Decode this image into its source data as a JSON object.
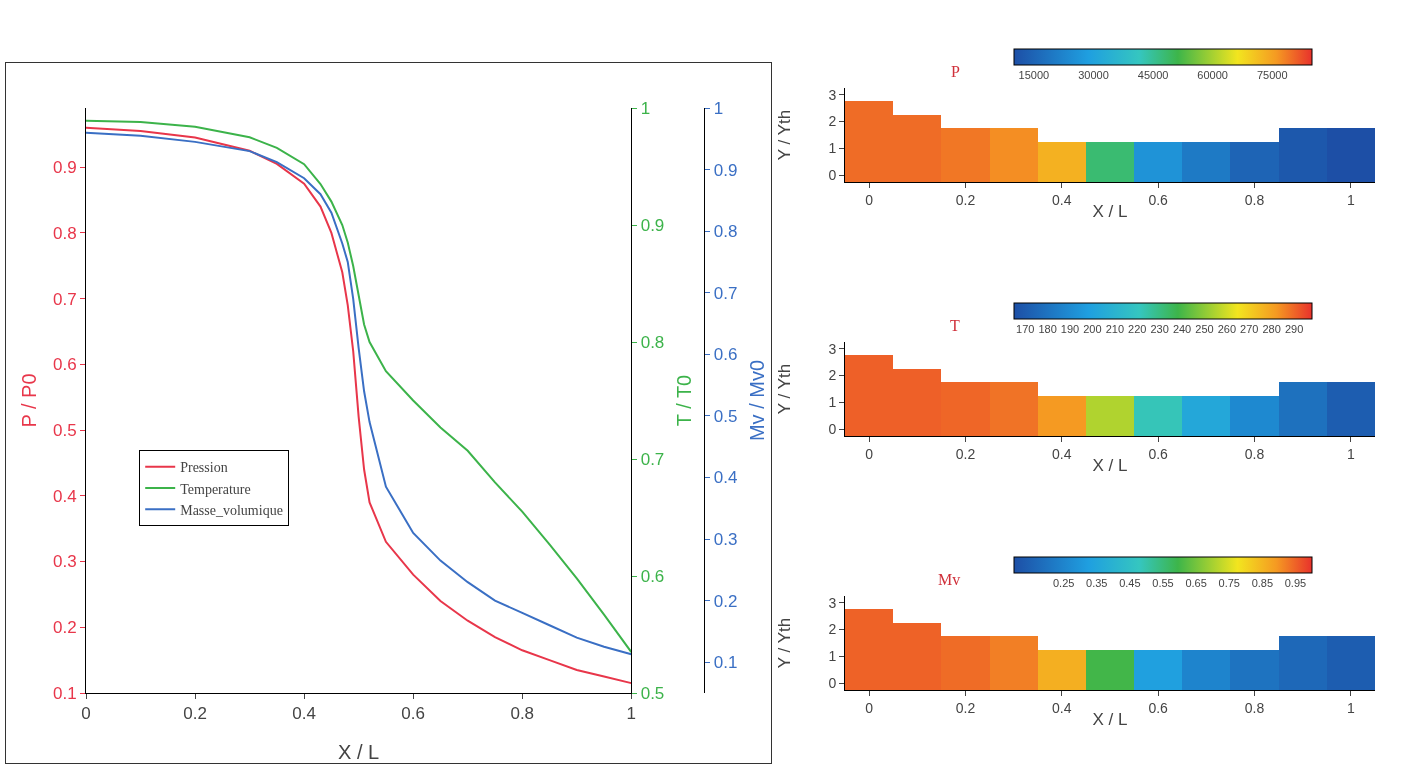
{
  "chart_data": [
    {
      "type": "line",
      "xlabel": "X / L",
      "ylabel": "P / P0",
      "y2label": "T / T0",
      "y3label": "Mv / Mv0",
      "x": [
        0,
        0.1,
        0.2,
        0.3,
        0.35,
        0.4,
        0.43,
        0.45,
        0.47,
        0.48,
        0.49,
        0.5,
        0.51,
        0.52,
        0.55,
        0.6,
        0.65,
        0.7,
        0.75,
        0.8,
        0.85,
        0.9,
        0.95,
        1
      ],
      "xlim": [
        0,
        1
      ],
      "xticks": [
        0,
        0.2,
        0.4,
        0.6,
        0.8,
        1
      ],
      "ylim": [
        0.1,
        0.99
      ],
      "yticks": [
        0.1,
        0.2,
        0.3,
        0.4,
        0.5,
        0.6,
        0.7,
        0.8,
        0.9
      ],
      "y2lim": [
        0.5,
        1
      ],
      "y2ticks": [
        0.5,
        0.6,
        0.7,
        0.8,
        0.9,
        1
      ],
      "y3lim": [
        0.05,
        1
      ],
      "y3ticks": [
        0.1,
        0.2,
        0.3,
        0.4,
        0.5,
        0.6,
        0.7,
        0.8,
        0.9,
        1
      ],
      "legend": "left",
      "grid": false,
      "series": [
        {
          "name": "Pression",
          "color": "#e8364a",
          "values": [
            0.96,
            0.955,
            0.945,
            0.925,
            0.905,
            0.875,
            0.84,
            0.8,
            0.74,
            0.69,
            0.62,
            0.52,
            0.44,
            0.39,
            0.33,
            0.28,
            0.24,
            0.21,
            0.185,
            0.165,
            0.15,
            0.135,
            0.125,
            0.115
          ]
        },
        {
          "name": "Temperature",
          "color": "#3cb34a",
          "axis": "y2",
          "values": [
            0.989,
            0.988,
            0.984,
            0.975,
            0.966,
            0.952,
            0.935,
            0.92,
            0.9,
            0.885,
            0.865,
            0.84,
            0.815,
            0.8,
            0.775,
            0.75,
            0.727,
            0.707,
            0.68,
            0.655,
            0.627,
            0.598,
            0.567,
            0.535
          ]
        },
        {
          "name": "Masse_volumique",
          "color": "#3a6fc4",
          "axis": "y3",
          "values": [
            0.96,
            0.955,
            0.945,
            0.93,
            0.912,
            0.886,
            0.86,
            0.83,
            0.78,
            0.75,
            0.69,
            0.61,
            0.54,
            0.49,
            0.385,
            0.31,
            0.265,
            0.23,
            0.2,
            0.18,
            0.16,
            0.14,
            0.125,
            0.113
          ]
        }
      ]
    },
    {
      "type": "heatmap",
      "xlabel": "X / L",
      "ylabel": "Y / Yth",
      "clabel": "P",
      "categories": [
        "0",
        null,
        "0.2",
        null,
        "0.4",
        null,
        "0.6",
        null,
        "0.8",
        null,
        "1"
      ],
      "y_categories": [
        "3",
        null,
        "2",
        null,
        "1",
        null,
        "0"
      ],
      "clim": [
        10000,
        85000
      ],
      "cticks": [
        15000,
        30000,
        45000,
        60000,
        75000
      ],
      "cells": [
        [
          null,
          null,
          null,
          null,
          null,
          null,
          null,
          null,
          null,
          null,
          null
        ],
        [
          80000,
          null,
          null,
          null,
          null,
          null,
          null,
          null,
          null,
          null,
          null
        ],
        [
          80000,
          80000,
          null,
          null,
          null,
          null,
          null,
          null,
          null,
          null,
          null
        ],
        [
          80000,
          80000,
          79000,
          77000,
          null,
          null,
          null,
          null,
          null,
          12000,
          10000
        ],
        [
          80000,
          80000,
          79000,
          77000,
          73000,
          48000,
          26000,
          20000,
          15000,
          12000,
          10000
        ],
        [
          80000,
          80000,
          79000,
          77000,
          73000,
          48000,
          26000,
          20000,
          15000,
          12000,
          10000
        ],
        [
          80000,
          80000,
          79000,
          77000,
          73000,
          48000,
          26000,
          20000,
          15000,
          12000,
          10000
        ]
      ]
    },
    {
      "type": "heatmap",
      "xlabel": "X / L",
      "ylabel": "Y / Yth",
      "clabel": "T",
      "categories": [
        "0",
        null,
        "0.2",
        null,
        "0.4",
        null,
        "0.6",
        null,
        "0.8",
        null,
        "1"
      ],
      "y_categories": [
        "3",
        null,
        "2",
        null,
        "1",
        null,
        "0"
      ],
      "clim": [
        165,
        298
      ],
      "cticks": [
        170,
        180,
        190,
        200,
        210,
        220,
        230,
        240,
        250,
        260,
        270,
        280,
        290
      ],
      "cells": [
        [
          null,
          null,
          null,
          null,
          null,
          null,
          null,
          null,
          null,
          null,
          null
        ],
        [
          291,
          null,
          null,
          null,
          null,
          null,
          null,
          null,
          null,
          null,
          null
        ],
        [
          291,
          291,
          null,
          null,
          null,
          null,
          null,
          null,
          null,
          null,
          null
        ],
        [
          291,
          291,
          290,
          288,
          null,
          null,
          null,
          null,
          null,
          179,
          171
        ],
        [
          291,
          291,
          290,
          288,
          282,
          255,
          222,
          203,
          189,
          179,
          171
        ],
        [
          291,
          291,
          290,
          288,
          282,
          255,
          222,
          203,
          189,
          179,
          171
        ],
        [
          291,
          291,
          290,
          288,
          282,
          255,
          222,
          203,
          189,
          179,
          171
        ]
      ]
    },
    {
      "type": "heatmap",
      "xlabel": "X / L",
      "ylabel": "Y / Yth",
      "clabel": "Mv",
      "categories": [
        "0",
        null,
        "0.2",
        null,
        "0.4",
        null,
        "0.6",
        null,
        "0.8",
        null,
        "1"
      ],
      "y_categories": [
        "3",
        null,
        "2",
        null,
        "1",
        null,
        "0"
      ],
      "clim": [
        0.1,
        1
      ],
      "cticks": [
        0.25,
        0.35,
        0.45,
        0.55,
        0.65,
        0.75,
        0.85,
        0.95
      ],
      "cells": [
        [
          null,
          null,
          null,
          null,
          null,
          null,
          null,
          null,
          null,
          null,
          null
        ],
        [
          0.95,
          null,
          null,
          null,
          null,
          null,
          null,
          null,
          null,
          null,
          null
        ],
        [
          0.95,
          0.95,
          null,
          null,
          null,
          null,
          null,
          null,
          null,
          null,
          null
        ],
        [
          0.95,
          0.95,
          0.94,
          0.92,
          null,
          null,
          null,
          null,
          null,
          0.17,
          0.14
        ],
        [
          0.95,
          0.95,
          0.94,
          0.92,
          0.86,
          0.6,
          0.33,
          0.25,
          0.2,
          0.17,
          0.14
        ],
        [
          0.95,
          0.95,
          0.94,
          0.92,
          0.86,
          0.6,
          0.33,
          0.25,
          0.2,
          0.17,
          0.14
        ],
        [
          0.95,
          0.95,
          0.94,
          0.92,
          0.86,
          0.6,
          0.33,
          0.25,
          0.2,
          0.17,
          0.14
        ]
      ]
    }
  ]
}
